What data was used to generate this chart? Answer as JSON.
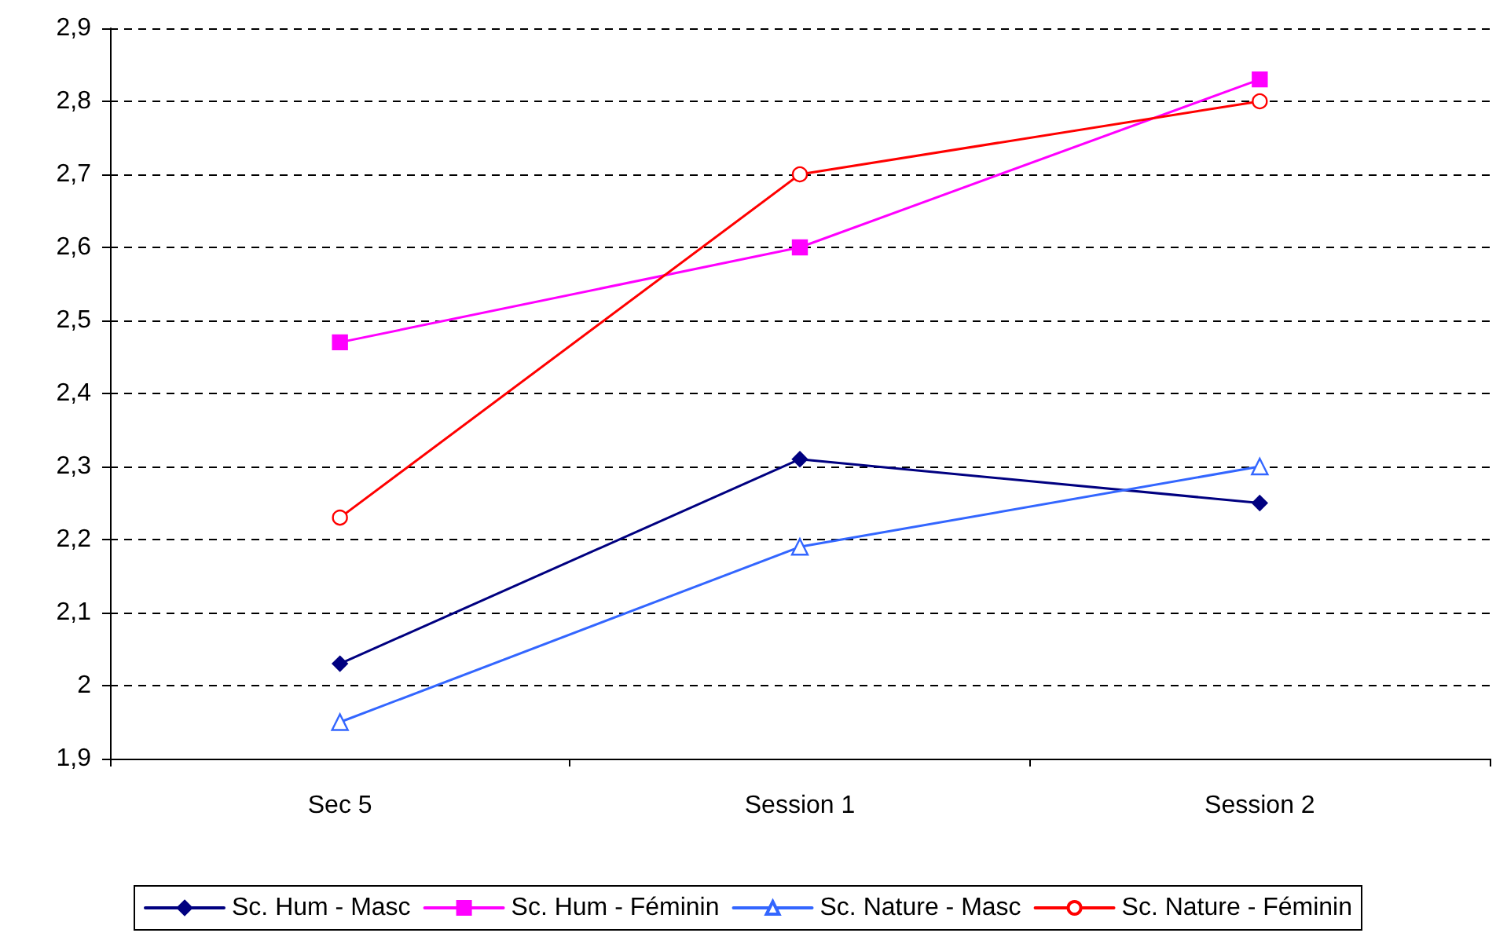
{
  "chart_data": {
    "type": "line",
    "categories": [
      "Sec 5",
      "Session 1",
      "Session 2"
    ],
    "series": [
      {
        "name": "Sc. Hum - Masc",
        "color": "#000080",
        "marker": "diamond",
        "values": [
          2.03,
          2.31,
          2.25
        ]
      },
      {
        "name": "Sc. Hum - Féminin",
        "color": "#ff00ff",
        "marker": "square",
        "values": [
          2.47,
          2.6,
          2.83
        ]
      },
      {
        "name": "Sc. Nature - Masc",
        "color": "#3366ff",
        "marker": "triangle",
        "values": [
          1.95,
          2.19,
          2.3
        ]
      },
      {
        "name": "Sc. Nature - Féminin",
        "color": "#ff0000",
        "marker": "circle",
        "values": [
          2.23,
          2.7,
          2.8
        ]
      }
    ],
    "ylim": [
      1.9,
      2.9
    ],
    "yticks": [
      {
        "value": 1.9,
        "label": "1,9"
      },
      {
        "value": 2,
        "label": "2"
      },
      {
        "value": 2.1,
        "label": "2,1"
      },
      {
        "value": 2.2,
        "label": "2,2"
      },
      {
        "value": 2.3,
        "label": "2,3"
      },
      {
        "value": 2.4,
        "label": "2,4"
      },
      {
        "value": 2.5,
        "label": "2,5"
      },
      {
        "value": 2.6,
        "label": "2,6"
      },
      {
        "value": 2.7,
        "label": "2,7"
      },
      {
        "value": 2.8,
        "label": "2,8"
      },
      {
        "value": 2.9,
        "label": "2,9"
      }
    ],
    "grid": "y",
    "legend": "bottom",
    "line_style": "solid"
  }
}
